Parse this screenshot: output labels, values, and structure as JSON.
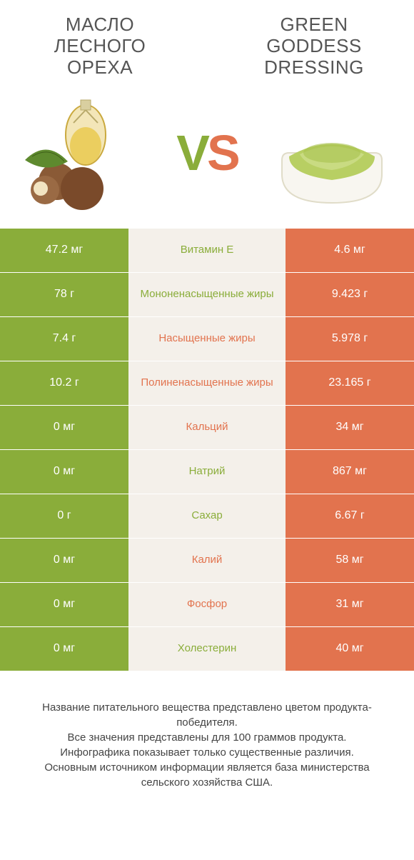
{
  "colors": {
    "green": "#8aad3a",
    "orange": "#e2734e",
    "mid_bg": "#f4f0ea",
    "text_dark": "#555555"
  },
  "header": {
    "left_title": "МАСЛО ЛЕСНОГО ОРЕХА",
    "right_title": "GREEN GODDESS DRESSING"
  },
  "vs": {
    "v": "V",
    "s": "S"
  },
  "rows": [
    {
      "left": "47.2 мг",
      "label": "Витамин E",
      "right": "4.6 мг",
      "winner": "left"
    },
    {
      "left": "78 г",
      "label": "Мононенасыщенные жиры",
      "right": "9.423 г",
      "winner": "left"
    },
    {
      "left": "7.4 г",
      "label": "Насыщенные жиры",
      "right": "5.978 г",
      "winner": "right"
    },
    {
      "left": "10.2 г",
      "label": "Полиненасыщенные жиры",
      "right": "23.165 г",
      "winner": "right"
    },
    {
      "left": "0 мг",
      "label": "Кальций",
      "right": "34 мг",
      "winner": "right"
    },
    {
      "left": "0 мг",
      "label": "Натрий",
      "right": "867 мг",
      "winner": "left"
    },
    {
      "left": "0 г",
      "label": "Сахар",
      "right": "6.67 г",
      "winner": "left"
    },
    {
      "left": "0 мг",
      "label": "Калий",
      "right": "58 мг",
      "winner": "right"
    },
    {
      "left": "0 мг",
      "label": "Фосфор",
      "right": "31 мг",
      "winner": "right"
    },
    {
      "left": "0 мг",
      "label": "Холестерин",
      "right": "40 мг",
      "winner": "left"
    }
  ],
  "footer": {
    "line1": "Название питательного вещества представлено цветом продукта-победителя.",
    "line2": "Все значения представлены для 100 граммов продукта.",
    "line3": "Инфографика показывает только существенные различия.",
    "line4": "Основным источником информации является база министерства сельского хозяйства США."
  }
}
